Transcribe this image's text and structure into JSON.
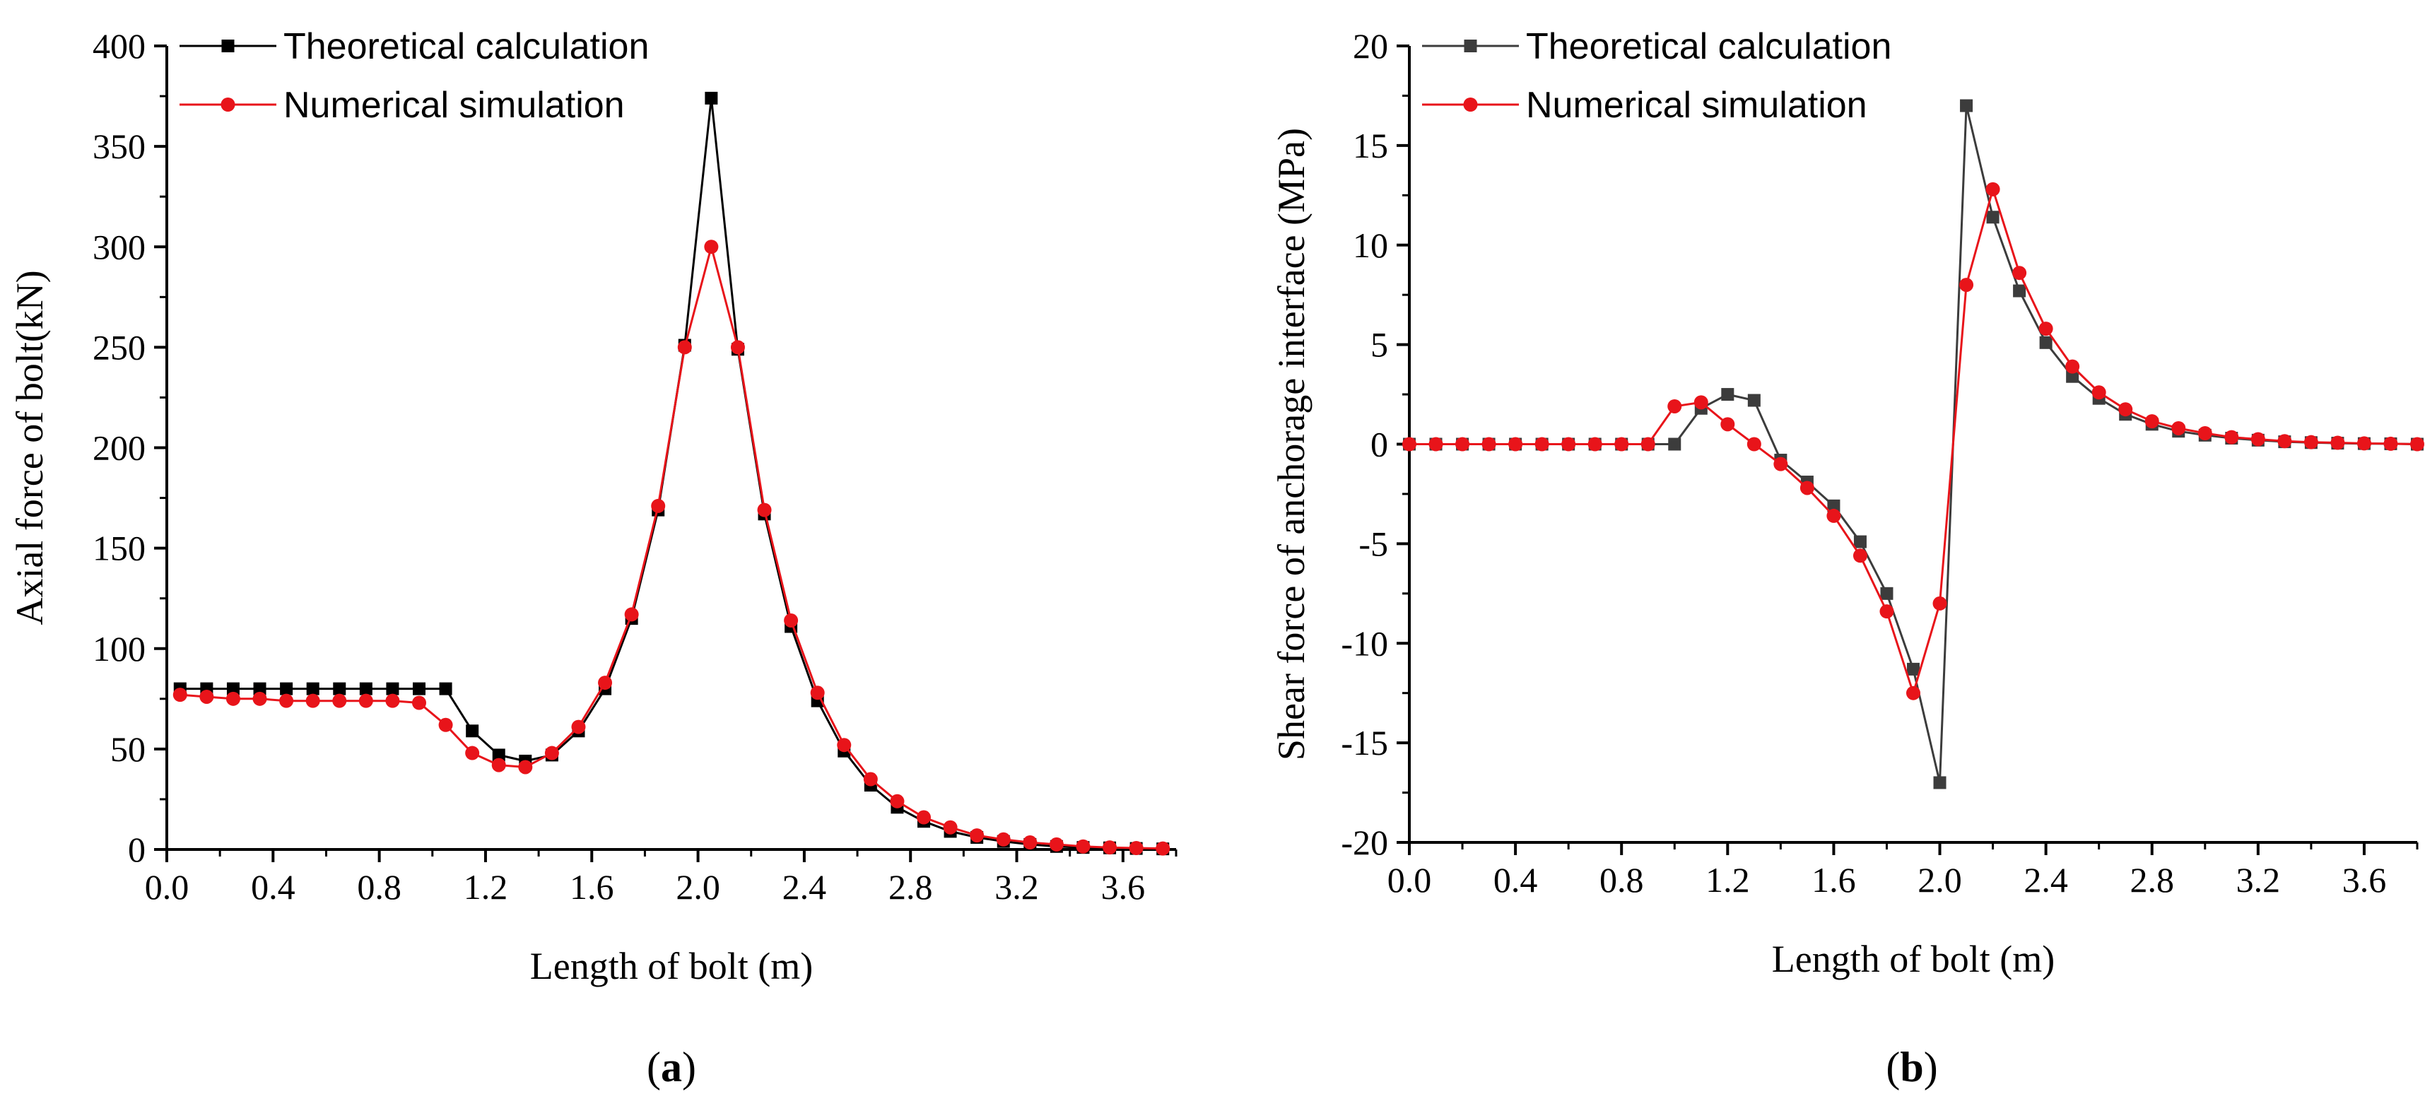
{
  "chart_data": [
    {
      "type": "line",
      "panel_label": "a",
      "xlabel": "Length of bolt (m)",
      "ylabel": "Axial force of bolt(kN)",
      "xlim": [
        0,
        3.8
      ],
      "ylim": [
        0,
        400
      ],
      "xticks": [
        "0.0",
        "0.4",
        "0.8",
        "1.2",
        "1.6",
        "2.0",
        "2.4",
        "2.8",
        "3.2",
        "3.6"
      ],
      "yticks": [
        "0",
        "50",
        "100",
        "150",
        "200",
        "250",
        "300",
        "350",
        "400"
      ],
      "legend_position": "top-left",
      "series": [
        {
          "name": "Theoretical calculation",
          "color": "#000000",
          "marker": "square",
          "x": [
            0.05,
            0.15,
            0.25,
            0.35,
            0.45,
            0.55,
            0.65,
            0.75,
            0.85,
            0.95,
            1.05,
            1.15,
            1.25,
            1.35,
            1.45,
            1.55,
            1.65,
            1.75,
            1.85,
            1.95,
            2.05,
            2.15,
            2.25,
            2.35,
            2.45,
            2.55,
            2.65,
            2.75,
            2.85,
            2.95,
            3.05,
            3.15,
            3.25,
            3.35,
            3.45,
            3.55,
            3.65,
            3.75
          ],
          "values": [
            80,
            80,
            80,
            80,
            80,
            80,
            80,
            80,
            80,
            80,
            80,
            59,
            47,
            44,
            47,
            59,
            80,
            115,
            169,
            251,
            374,
            249,
            167,
            111,
            74,
            49,
            32,
            21,
            14,
            9,
            6,
            4,
            2.5,
            1.5,
            1,
            0.8,
            0.5,
            0.3
          ]
        },
        {
          "name": "Numerical simulation",
          "color": "#e8141a",
          "marker": "circle",
          "x": [
            0.05,
            0.15,
            0.25,
            0.35,
            0.45,
            0.55,
            0.65,
            0.75,
            0.85,
            0.95,
            1.05,
            1.15,
            1.25,
            1.35,
            1.45,
            1.55,
            1.65,
            1.75,
            1.85,
            1.95,
            2.05,
            2.15,
            2.25,
            2.35,
            2.45,
            2.55,
            2.65,
            2.75,
            2.85,
            2.95,
            3.05,
            3.15,
            3.25,
            3.35,
            3.45,
            3.55,
            3.65,
            3.75
          ],
          "values": [
            77,
            76,
            75,
            75,
            74,
            74,
            74,
            74,
            74,
            73,
            62,
            48,
            42,
            41,
            48,
            61,
            83,
            117,
            171,
            250,
            300,
            250,
            169,
            114,
            78,
            52,
            35,
            24,
            16,
            11,
            7,
            5,
            3.5,
            2.5,
            1.5,
            1,
            0.7,
            0.5
          ]
        }
      ]
    },
    {
      "type": "line",
      "panel_label": "b",
      "xlabel": "Length of bolt (m)",
      "ylabel": "Shear force of anchorage interface (MPa)",
      "xlim": [
        0,
        3.8
      ],
      "ylim": [
        -20,
        20
      ],
      "xticks": [
        "0.0",
        "0.4",
        "0.8",
        "1.2",
        "1.6",
        "2.0",
        "2.4",
        "2.8",
        "3.2",
        "3.6"
      ],
      "yticks": [
        "-20",
        "-15",
        "-10",
        "-5",
        "0",
        "5",
        "10",
        "15",
        "20"
      ],
      "legend_position": "top-left",
      "series": [
        {
          "name": "Theoretical calculation",
          "color": "#3c3c3c",
          "marker": "square",
          "x": [
            0.0,
            0.1,
            0.2,
            0.3,
            0.4,
            0.5,
            0.6,
            0.7,
            0.8,
            0.9,
            1.0,
            1.1,
            1.2,
            1.3,
            1.4,
            1.5,
            1.6,
            1.7,
            1.8,
            1.9,
            2.0,
            2.1,
            2.2,
            2.3,
            2.4,
            2.5,
            2.6,
            2.7,
            2.8,
            2.9,
            3.0,
            3.1,
            3.2,
            3.3,
            3.4,
            3.5,
            3.6,
            3.7,
            3.8
          ],
          "values": [
            0,
            0,
            0,
            0,
            0,
            0,
            0,
            0,
            0,
            0,
            0,
            1.8,
            2.5,
            2.2,
            -0.8,
            -1.9,
            -3.1,
            -4.9,
            -7.5,
            -11.3,
            -17,
            17,
            11.4,
            7.7,
            5.1,
            3.4,
            2.3,
            1.5,
            1.0,
            0.65,
            0.45,
            0.3,
            0.2,
            0.12,
            0.08,
            0.05,
            0.03,
            0.02,
            0.0
          ]
        },
        {
          "name": "Numerical simulation",
          "color": "#e8141a",
          "marker": "circle",
          "x": [
            0.0,
            0.1,
            0.2,
            0.3,
            0.4,
            0.5,
            0.6,
            0.7,
            0.8,
            0.9,
            1.0,
            1.1,
            1.2,
            1.3,
            1.4,
            1.5,
            1.6,
            1.7,
            1.8,
            1.9,
            2.0,
            2.1,
            2.2,
            2.3,
            2.4,
            2.5,
            2.6,
            2.7,
            2.8,
            2.9,
            3.0,
            3.1,
            3.2,
            3.3,
            3.4,
            3.5,
            3.6,
            3.7,
            3.8
          ],
          "values": [
            0,
            0,
            0,
            0,
            0,
            0,
            0,
            0,
            0,
            0,
            1.9,
            2.1,
            1.0,
            0,
            -1.0,
            -2.2,
            -3.6,
            -5.6,
            -8.4,
            -12.5,
            -8,
            8,
            12.8,
            8.6,
            5.8,
            3.9,
            2.6,
            1.75,
            1.15,
            0.8,
            0.55,
            0.35,
            0.25,
            0.15,
            0.1,
            0.07,
            0.04,
            0.02,
            0.0
          ]
        }
      ]
    }
  ]
}
